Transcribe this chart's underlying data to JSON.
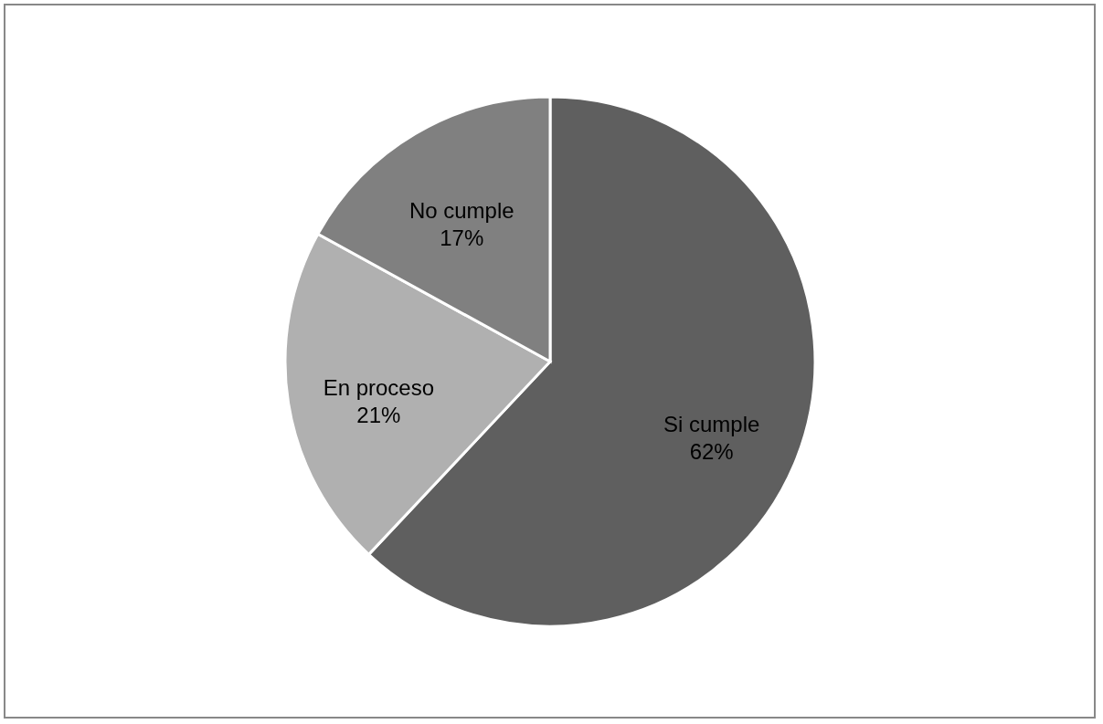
{
  "chart_data": {
    "type": "pie",
    "categories": [
      "Si cumple",
      "En proceso",
      "No cumple"
    ],
    "values": [
      62,
      21,
      17
    ],
    "value_labels": [
      "62%",
      "21%",
      "17%"
    ],
    "colors": [
      "#5f5f5f",
      "#b0b0b0",
      "#808080"
    ],
    "legend": false
  }
}
